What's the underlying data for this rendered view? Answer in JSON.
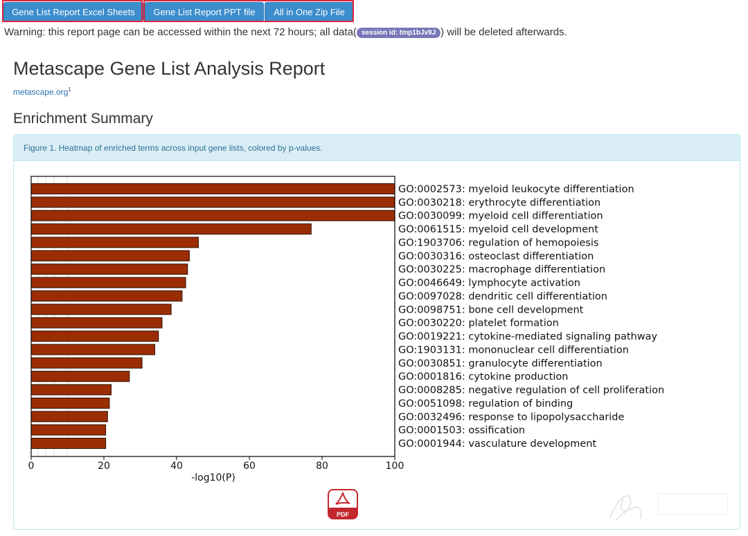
{
  "toolbar": {
    "excel_label": "Gene List Report Excel Sheets",
    "ppt_label": "Gene List Report PPT file",
    "zip_label": "All in One Zip File"
  },
  "warning": {
    "prefix": "Warning: this report page can be accessed within the next 72 hours; all data(",
    "session_label": "session id: tmp1bJv9J",
    "suffix": ") will be deleted afterwards."
  },
  "report": {
    "title": "Metascape Gene List Analysis Report",
    "site_link": "metascape.org",
    "site_sup": "1",
    "section_title": "Enrichment Summary",
    "figure_caption": "Figure 1. Heatmap of enriched terms across input gene lists, colored by p-values.",
    "pdf_label": "PDF"
  },
  "colors": {
    "button": "#3c8dcd",
    "highlight": "#e0243a",
    "bar": "#9b2d05",
    "panel_heading": "#d9edf7",
    "badge": "#7777b8"
  },
  "chart_data": {
    "type": "bar",
    "orientation": "horizontal",
    "xlabel": "-log10(P)",
    "xlim": [
      0,
      100
    ],
    "xticks": [
      "0",
      "20",
      "40",
      "60",
      "80",
      "100"
    ],
    "categories": [
      "GO:0002573: myeloid leukocyte differentiation",
      "GO:0030218: erythrocyte differentiation",
      "GO:0030099: myeloid cell differentiation",
      "GO:0061515: myeloid cell development",
      "GO:1903706: regulation of hemopoiesis",
      "GO:0030316: osteoclast differentiation",
      "GO:0030225: macrophage differentiation",
      "GO:0046649: lymphocyte activation",
      "GO:0097028: dendritic cell differentiation",
      "GO:0098751: bone cell development",
      "GO:0030220: platelet formation",
      "GO:0019221: cytokine-mediated signaling pathway",
      "GO:1903131: mononuclear cell differentiation",
      "GO:0030851: granulocyte differentiation",
      "GO:0001816: cytokine production",
      "GO:0008285: negative regulation of cell proliferation",
      "GO:0051098: regulation of binding",
      "GO:0032496: response to lipopolysaccharide",
      "GO:0001503: ossification",
      "GO:0001944: vasculature development"
    ],
    "values": [
      100,
      100,
      100,
      77,
      46,
      43.5,
      43,
      42.5,
      41.5,
      38.5,
      36,
      35,
      34,
      30.5,
      27,
      22,
      21.5,
      21,
      20.5,
      20.5
    ],
    "grid": false
  }
}
